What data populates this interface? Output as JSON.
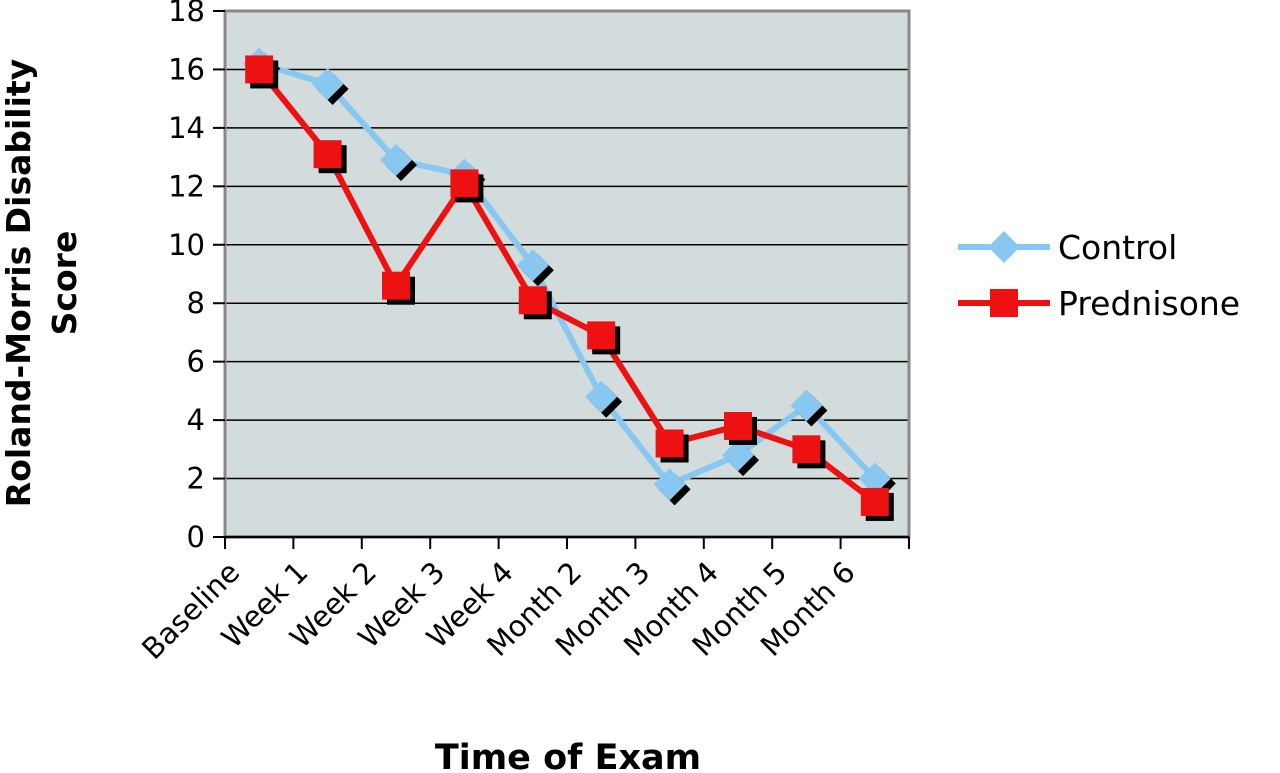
{
  "chart_data": {
    "type": "line",
    "title": "",
    "xlabel": "Time of Exam",
    "ylabel": [
      "Roland-Morris Disability",
      "Score"
    ],
    "categories": [
      "Baseline",
      "Week 1",
      "Week 2",
      "Week 3",
      "Week 4",
      "Month 2",
      "Month 3",
      "Month 4",
      "Month 5",
      "Month 6"
    ],
    "ylim": [
      0,
      18
    ],
    "yticks": [
      "0",
      "2",
      "4",
      "6",
      "8",
      "10",
      "12",
      "14",
      "16",
      "18"
    ],
    "grid": true,
    "legend_position": "right",
    "series": [
      {
        "name": "Control",
        "color": "#88c8f0",
        "marker": "diamond",
        "values": [
          16.2,
          15.5,
          12.9,
          12.4,
          9.3,
          4.8,
          1.8,
          2.8,
          4.5,
          2.0
        ]
      },
      {
        "name": "Prednisone",
        "color": "#ee1111",
        "marker": "square",
        "values": [
          16.0,
          13.1,
          8.6,
          12.1,
          8.1,
          6.9,
          3.2,
          3.8,
          3.0,
          1.2
        ]
      }
    ],
    "colors": {
      "plot_background": "#d3dcdc",
      "plot_border": "#888888",
      "gridline": "#000000",
      "marker_shadow": "#000000"
    }
  }
}
